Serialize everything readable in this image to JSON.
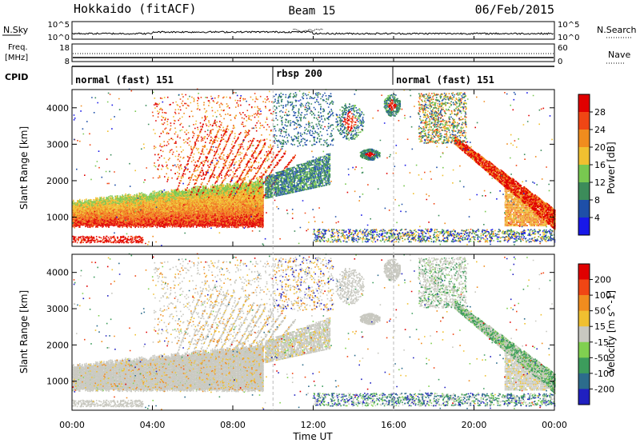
{
  "header": {
    "title": "Hokkaido (fitACF)",
    "beam": "Beam 15",
    "date": "06/Feb/2015"
  },
  "noise_panel": {
    "left_label": "N.Sky",
    "right_label": "N.Search",
    "left_ticks": [
      "10^5",
      "10^0"
    ],
    "right_ticks": [
      "10^5",
      "10^0"
    ]
  },
  "freq_panel": {
    "left_label_line1": "Freq.",
    "left_label_line2": "[MHz]",
    "left_ticks": [
      "18",
      "8"
    ],
    "right_ticks": [
      "60",
      "0"
    ],
    "right_label": "Nave"
  },
  "cpid_panel": {
    "label": "CPID",
    "segments": [
      {
        "name": "normal (fast) 151",
        "start": "00:00",
        "end": "10:00"
      },
      {
        "name": "rbsp 200",
        "start": "10:00",
        "end": "16:00"
      },
      {
        "name": "normal (fast) 151",
        "start": "16:00",
        "end": "24:00"
      }
    ]
  },
  "colors": {
    "background": "#ffffff",
    "ground_scatter": "#c8c8c0"
  },
  "chart_data": [
    {
      "type": "heatmap",
      "name": "power",
      "ylabel": "Slant Range [km]",
      "yticks": [
        1000,
        2000,
        3000,
        4000
      ],
      "ylim": [
        200,
        4500
      ],
      "xlim": [
        0,
        24
      ],
      "colorbar": {
        "label": "Power [dB]",
        "ticks": [
          "4",
          "8",
          "12",
          "16",
          "20",
          "24",
          "28"
        ],
        "colors": [
          "#1818e8",
          "#1e4fa8",
          "#3c8c5a",
          "#78c850",
          "#f0c030",
          "#f08c1e",
          "#f04614",
          "#e00000"
        ]
      }
    },
    {
      "type": "heatmap",
      "name": "velocity",
      "ylabel": "Slant Range [km]",
      "yticks": [
        1000,
        2000,
        3000,
        4000
      ],
      "ylim": [
        200,
        4500
      ],
      "xlim": [
        0,
        24
      ],
      "xlabel": "Time UT",
      "xticks": [
        "00:00",
        "04:00",
        "08:00",
        "12:00",
        "16:00",
        "20:00",
        "00:00"
      ],
      "colorbar": {
        "label": "Velocity [m s^-1]",
        "ticks": [
          "200",
          "100",
          "50",
          "15",
          "-15",
          "-50",
          "-100",
          "-200"
        ],
        "colors": [
          "#2020c0",
          "#2c6c8c",
          "#3c9c5c",
          "#80d050",
          "#c8c8c0",
          "#f0c030",
          "#f08c1e",
          "#f04614",
          "#e00000"
        ]
      }
    }
  ]
}
